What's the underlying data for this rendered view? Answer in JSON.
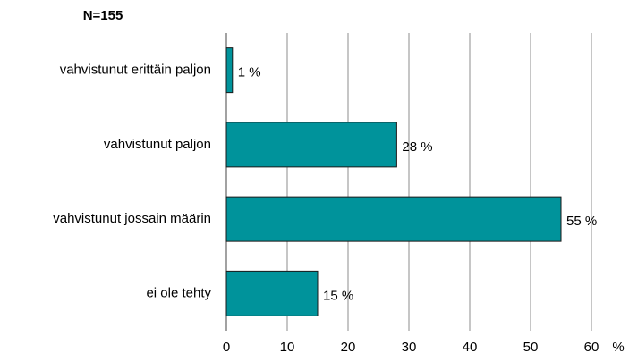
{
  "chart_data": {
    "type": "bar",
    "orientation": "horizontal",
    "title": "N=155",
    "x_label": "%",
    "categories": [
      "vahvistunut erittäin paljon",
      "vahvistunut paljon",
      "vahvistunut jossain määrin",
      "ei ole tehty"
    ],
    "values": [
      1,
      28,
      55,
      15
    ],
    "value_labels": [
      "1 %",
      "28 %",
      "55 %",
      "15 %"
    ],
    "color": "#00939b",
    "xlim": [
      0,
      60
    ],
    "xticks": [
      0,
      10,
      20,
      30,
      40,
      50,
      60
    ],
    "grid": true
  }
}
